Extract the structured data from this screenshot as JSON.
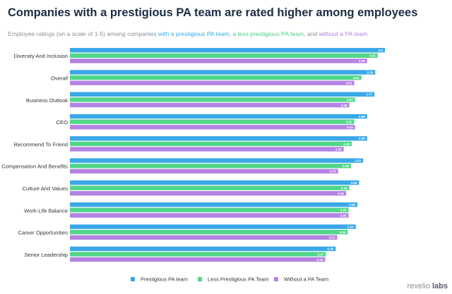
{
  "chart_data": {
    "type": "bar",
    "orientation": "horizontal",
    "title": "Companies with a prestigious PA team are rated higher among employees",
    "subtitle": {
      "prefix": "Employee ratings (on a scale of 1-5) among companies ",
      "part1": "with a prestigious PA team",
      "sep1": ", ",
      "part2": "a less prestigious PA team",
      "sep2": ", and ",
      "part3": "without a PA team"
    },
    "categories": [
      "Diversity And Inclusion",
      "Overall",
      "Business Outlook",
      "CEO",
      "Recommend To Friend",
      "Compensation And Benefits",
      "Culture And Values",
      "Work-Life Balance",
      "Career Opportunities",
      "Senior Leadership"
    ],
    "series": [
      {
        "name": "Prestigious PA team",
        "color": "#3aa8e8",
        "values": [
          3.9,
          3.78,
          3.77,
          3.68,
          3.68,
          3.63,
          3.58,
          3.56,
          3.54,
          3.29
        ],
        "labels": [
          "3.9",
          "3.78",
          "3.77",
          "3.68",
          "3.68",
          "3.63",
          "3.58",
          "3.56",
          "3.54",
          "3.29"
        ]
      },
      {
        "name": "Less Prestigious PA Team",
        "color": "#52d68a",
        "values": [
          3.81,
          3.61,
          3.53,
          3.52,
          3.49,
          3.48,
          3.46,
          3.45,
          3.44,
          3.17
        ],
        "labels": [
          "3.81",
          "3.61",
          "3.53",
          "3.52",
          "3.49",
          "3.48",
          "3.46",
          "3.45",
          "3.44",
          "3.17"
        ]
      },
      {
        "name": "Without a PA Team",
        "color": "#b583e2",
        "values": [
          3.68,
          3.52,
          3.46,
          3.53,
          3.39,
          3.32,
          3.42,
          3.45,
          3.31,
          3.16
        ],
        "labels": [
          "3.68",
          "3.52",
          "3.46",
          "3.53",
          "3.39",
          "3.32",
          "3.42",
          "3.45",
          "3.31",
          "3.16"
        ]
      }
    ],
    "xlim": [
      0,
      3.9
    ],
    "grid": false,
    "legend_position": "bottom"
  },
  "brand": {
    "light": "revelio",
    "bold": "labs"
  }
}
